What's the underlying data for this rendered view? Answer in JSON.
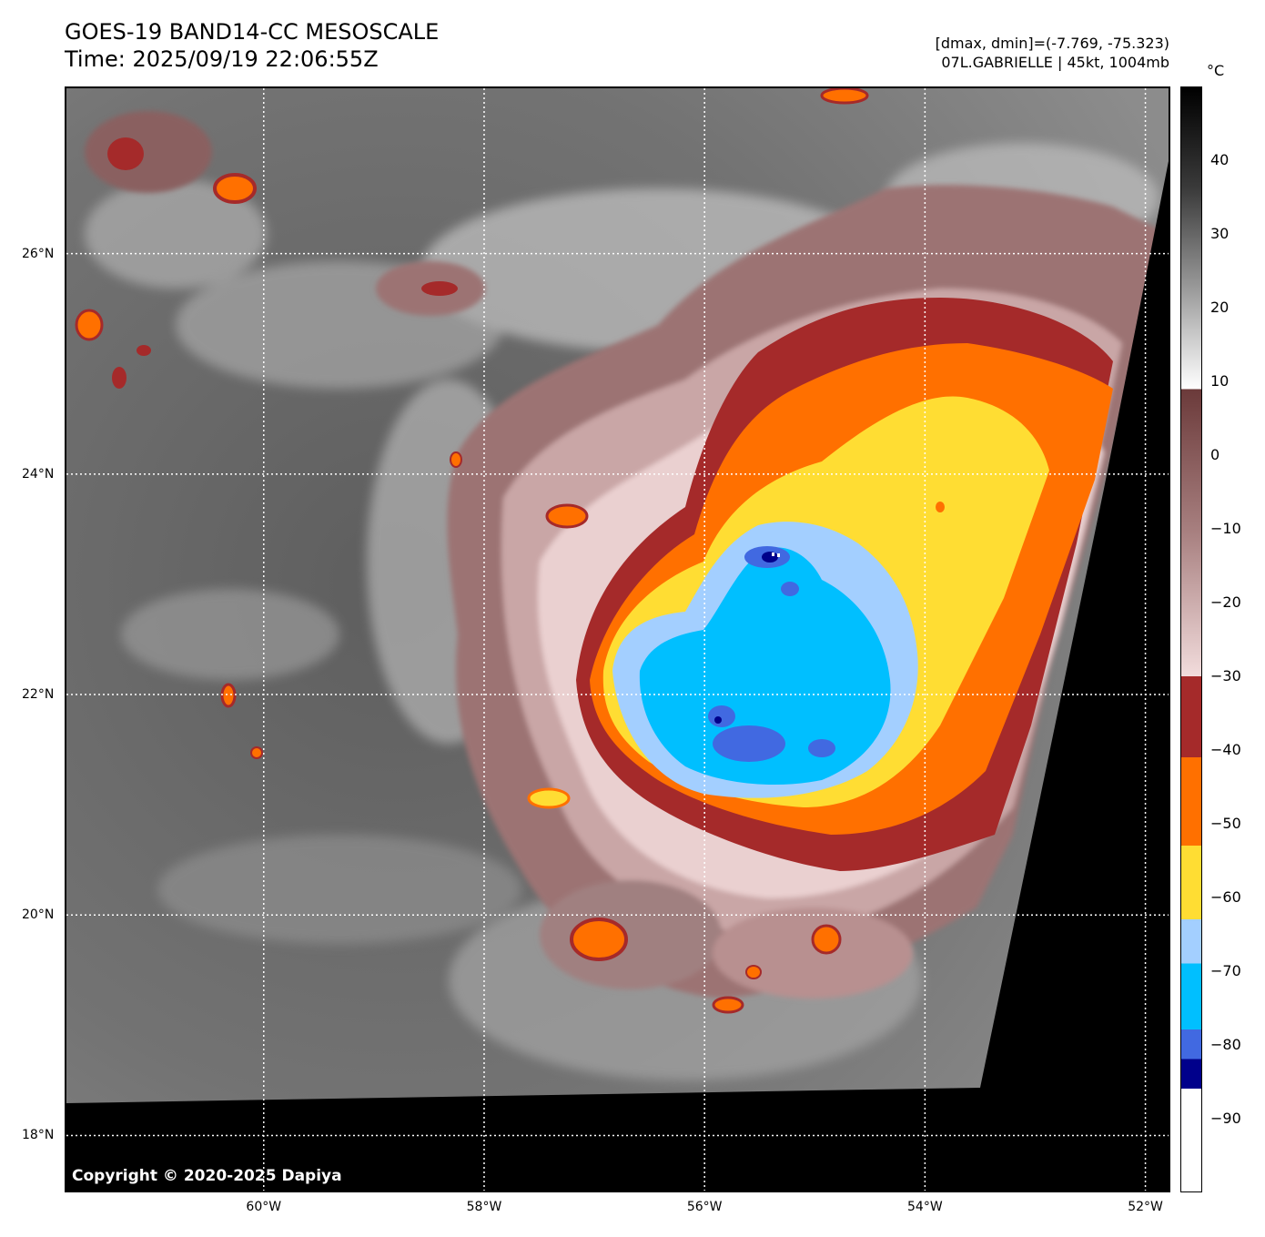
{
  "header": {
    "title_line1": "GOES-19 BAND14-CC MESOSCALE",
    "title_line2": "Time: 2025/09/19 22:06:55Z",
    "dmax_dmin": "[dmax, dmin]=(-7.769, -75.323)",
    "storm_info": "07L.GABRIELLE | 45kt, 1004mb"
  },
  "map": {
    "copyright": "Copyright © 2020-2025 Dapiya",
    "lat_labels": [
      "26°N",
      "24°N",
      "22°N",
      "20°N",
      "18°N"
    ],
    "lon_labels": [
      "60°W",
      "58°W",
      "56°W",
      "54°W",
      "52°W"
    ],
    "lat_values": [
      26,
      24,
      22,
      20,
      18
    ],
    "lon_values": [
      -60,
      -58,
      -56,
      -54,
      -52
    ],
    "extent": {
      "lon_min": -61.79,
      "lon_max": -51.79,
      "lat_min": 17.5,
      "lat_max": 27.5
    },
    "gridlines": "dotted",
    "no_data_color": "#000000"
  },
  "colorbar": {
    "unit": "°C",
    "tick_labels": [
      "40",
      "30",
      "20",
      "10",
      "0",
      "−10",
      "−20",
      "−30",
      "−40",
      "−50",
      "−60",
      "−70",
      "−80",
      "−90"
    ],
    "tick_values": [
      40,
      30,
      20,
      10,
      0,
      -10,
      -20,
      -30,
      -40,
      -50,
      -60,
      -70,
      -80,
      -90
    ],
    "range": [
      -100,
      50
    ],
    "segments": [
      {
        "from": 50,
        "to": 9,
        "colors": [
          "#000000",
          "#3a3a3a",
          "#9a9a9a",
          "#ffffff"
        ]
      },
      {
        "from": 9,
        "to": -30,
        "colors": [
          "#6b3a3a",
          "#a88080",
          "#f2dcdc"
        ]
      },
      {
        "from": -30,
        "to": -41,
        "colors": [
          "#a52a2a"
        ]
      },
      {
        "from": -41,
        "to": -53,
        "colors": [
          "#ff7000"
        ]
      },
      {
        "from": -53,
        "to": -63,
        "colors": [
          "#ffdd33"
        ]
      },
      {
        "from": -63,
        "to": -69,
        "colors": [
          "#a3cfff"
        ]
      },
      {
        "from": -69,
        "to": -78,
        "colors": [
          "#00bfff"
        ]
      },
      {
        "from": -78,
        "to": -82,
        "colors": [
          "#4169e1"
        ]
      },
      {
        "from": -82,
        "to": -86,
        "colors": [
          "#00008b"
        ]
      },
      {
        "from": -86,
        "to": -100,
        "colors": [
          "#ffffff"
        ]
      }
    ]
  }
}
